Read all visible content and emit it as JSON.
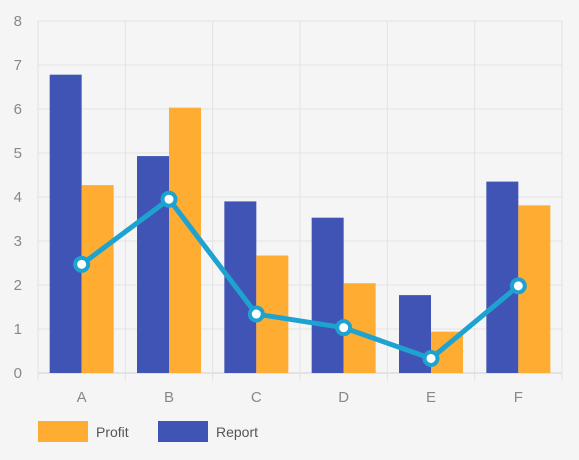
{
  "chart_data": {
    "type": "bar",
    "categories": [
      "A",
      "B",
      "C",
      "D",
      "E",
      "F"
    ],
    "ylim": [
      0,
      8
    ],
    "yticks": [
      0,
      1,
      2,
      3,
      4,
      5,
      6,
      7,
      8
    ],
    "grid": true,
    "legend_position": "bottom-left",
    "series": [
      {
        "name": "Report",
        "kind": "bar",
        "color": "#3f54b5",
        "values": [
          6.78,
          4.93,
          3.9,
          3.53,
          1.77,
          4.35
        ]
      },
      {
        "name": "Profit",
        "kind": "bar",
        "color": "#ffac33",
        "values": [
          4.27,
          6.03,
          2.67,
          2.04,
          0.94,
          3.81
        ]
      },
      {
        "kind": "line",
        "color": "#1ea2d0",
        "values": [
          2.47,
          3.95,
          1.34,
          1.03,
          0.33,
          1.98
        ]
      }
    ],
    "legend": [
      {
        "label": "Profit",
        "color": "#ffac33"
      },
      {
        "label": "Report",
        "color": "#3f54b5"
      }
    ]
  }
}
